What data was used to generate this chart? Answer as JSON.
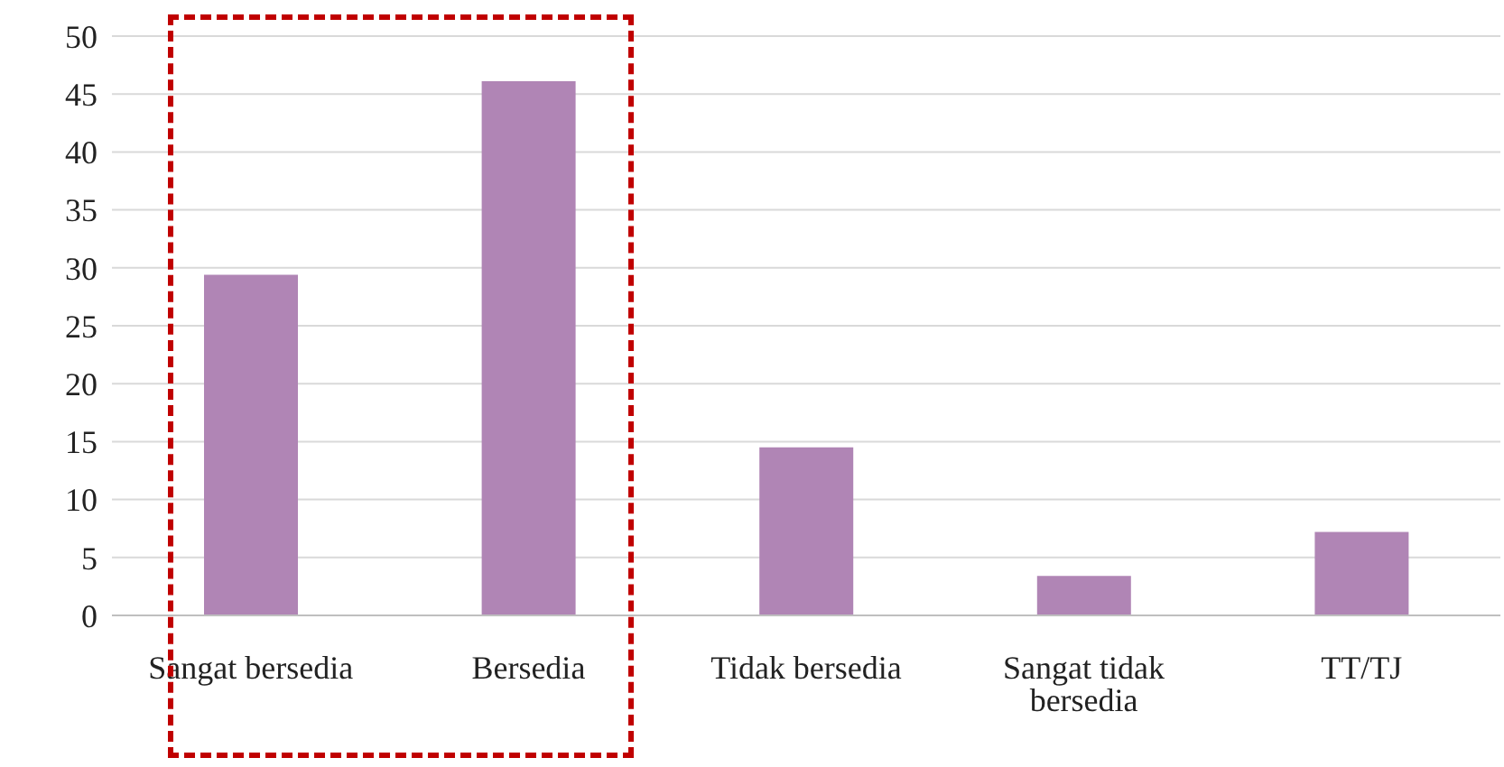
{
  "chart_data": {
    "type": "bar",
    "categories": [
      "Sangat bersedia",
      "Bersedia",
      "Tidak bersedia",
      "Sangat tidak bersedia",
      "TT/TJ"
    ],
    "values": [
      29.4,
      46.1,
      14.5,
      3.4,
      7.2
    ],
    "color": "#b085b5",
    "ylim": [
      0,
      50
    ],
    "yticks": [
      0,
      5,
      10,
      15,
      20,
      25,
      30,
      35,
      40,
      45,
      50
    ],
    "grid": "y",
    "legend": false
  }
}
